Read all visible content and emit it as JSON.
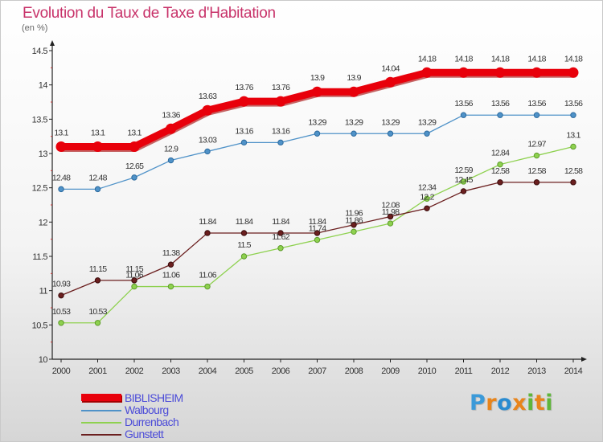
{
  "title": "Evolution du Taux de Taxe d'Habitation",
  "unit": "(en %)",
  "logo": {
    "text": "Proxiti",
    "colors": [
      "#3b9ad9",
      "#e8841b",
      "#2a8bd0",
      "#e8841b",
      "#5fb63a",
      "#e8841b",
      "#5fb63a"
    ]
  },
  "chart_data": {
    "type": "line",
    "title": "Evolution du Taux de Taxe d'Habitation",
    "ylabel": "(en %)",
    "xlabel": "",
    "ylim": [
      10,
      14.5
    ],
    "yticks": [
      "10",
      "10.5",
      "11",
      "11.5",
      "12",
      "12.5",
      "13",
      "13.5",
      "14",
      "14.5"
    ],
    "grid": false,
    "legend_position": "bottom-left",
    "categories": [
      "2000",
      "2001",
      "2002",
      "2003",
      "2004",
      "2005",
      "2006",
      "2007",
      "2008",
      "2009",
      "2010",
      "2011",
      "2012",
      "2013",
      "2014"
    ],
    "series": [
      {
        "name": "BIBLISHEIM",
        "color": "#e8000b",
        "values": [
          13.1,
          13.1,
          13.1,
          13.36,
          13.63,
          13.76,
          13.76,
          13.9,
          13.9,
          14.04,
          14.18,
          14.18,
          14.18,
          14.18,
          14.18
        ],
        "labels": [
          "13.1",
          "13.1",
          "13.1",
          "13.36",
          "13.63",
          "13.76",
          "13.76",
          "13.9",
          "13.9",
          "14.04",
          "14.18",
          "14.18",
          "14.18",
          "14.18",
          "14.18"
        ]
      },
      {
        "name": "Walbourg",
        "color": "#4f92c8",
        "values": [
          12.48,
          12.48,
          12.65,
          12.9,
          13.03,
          13.16,
          13.16,
          13.29,
          13.29,
          13.29,
          13.29,
          13.56,
          13.56,
          13.56,
          13.56
        ],
        "labels": [
          "12.48",
          "12.48",
          "12.65",
          "12.9",
          "13.03",
          "13.16",
          "13.16",
          "13.29",
          "13.29",
          "13.29",
          "13.29",
          "13.56",
          "13.56",
          "13.56",
          "13.56"
        ]
      },
      {
        "name": "Durrenbach",
        "color": "#8ed14f",
        "values": [
          10.53,
          10.53,
          11.06,
          11.06,
          11.06,
          11.5,
          11.62,
          11.74,
          11.86,
          11.98,
          12.34,
          12.59,
          12.84,
          12.97,
          13.1
        ],
        "labels": [
          "10.53",
          "10.53",
          "11.06",
          "11.06",
          "11.06",
          "11.5",
          "11.62",
          "11.74",
          "11.86",
          "11.98",
          "12.34",
          "12.59",
          "12.84",
          "12.97",
          "13.1"
        ]
      },
      {
        "name": "Gunstett",
        "color": "#6b1f1f",
        "values": [
          10.93,
          11.15,
          11.15,
          11.38,
          11.84,
          11.84,
          11.84,
          11.84,
          11.96,
          12.08,
          12.2,
          12.45,
          12.58,
          12.58,
          12.58
        ],
        "labels": [
          "10.93",
          "11.15",
          "11.15",
          "11.38",
          "11.84",
          "11.84",
          "11.84",
          "11.84",
          "11.96",
          "12.08",
          "12.2",
          "12.45",
          "12.58",
          "12.58",
          "12.58"
        ]
      }
    ]
  }
}
